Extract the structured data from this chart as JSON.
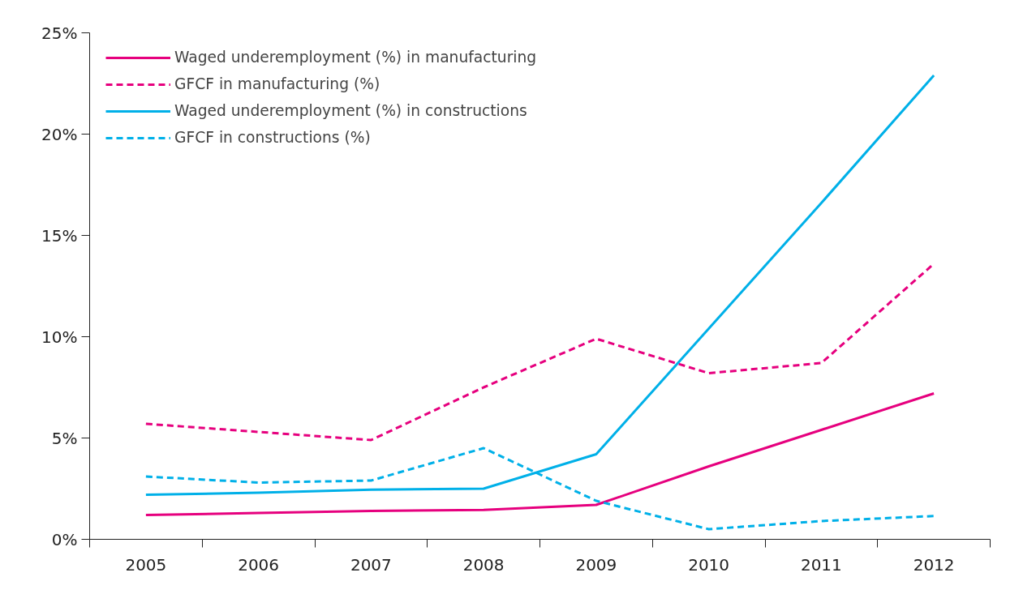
{
  "chart_data": {
    "type": "line",
    "categories": [
      "2005",
      "2006",
      "2007",
      "2008",
      "2009",
      "2010",
      "2011",
      "2012"
    ],
    "series": [
      {
        "name": "Waged underemployment (%) in manufacturing",
        "color": "#e6007e",
        "line_style": "solid",
        "values": [
          1.2,
          1.3,
          1.4,
          1.45,
          1.7,
          3.6,
          5.4,
          7.2
        ]
      },
      {
        "name": "GFCF in manufacturing (%)",
        "color": "#e6007e",
        "line_style": "dashed",
        "values": [
          5.7,
          5.3,
          4.9,
          7.5,
          9.9,
          8.2,
          8.7,
          13.6
        ]
      },
      {
        "name": "Waged underemployment (%) in constructions",
        "color": "#00b0e8",
        "line_style": "solid",
        "values": [
          2.2,
          2.3,
          2.45,
          2.5,
          4.2,
          10.4,
          16.6,
          22.9
        ]
      },
      {
        "name": "GFCF in constructions (%)",
        "color": "#00b0e8",
        "line_style": "dashed",
        "values": [
          3.1,
          2.8,
          2.9,
          4.5,
          1.9,
          0.5,
          0.9,
          1.15
        ]
      }
    ],
    "ylim": [
      0,
      25
    ],
    "yticks": [
      {
        "value": 0,
        "label": "0%"
      },
      {
        "value": 5,
        "label": "5%"
      },
      {
        "value": 10,
        "label": "10%"
      },
      {
        "value": 15,
        "label": "15%"
      },
      {
        "value": 20,
        "label": "20%"
      },
      {
        "value": 25,
        "label": "25%"
      }
    ],
    "grid": false,
    "legend": "top left",
    "marker": "none"
  }
}
